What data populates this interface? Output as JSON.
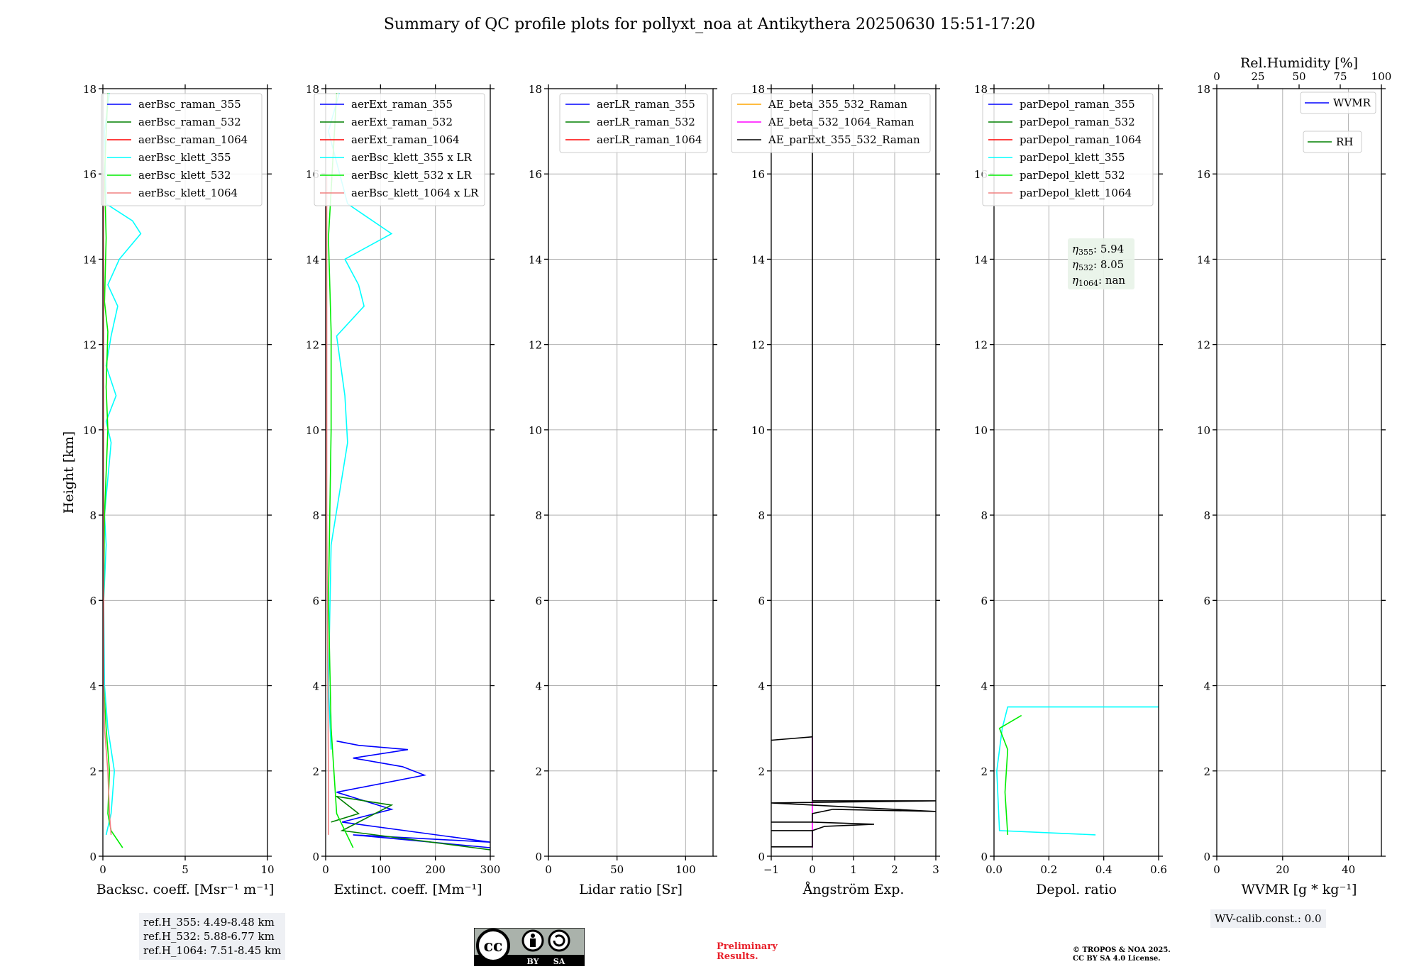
{
  "title": "Summary of QC profile plots for pollyxt_noa at Antikythera 20250630 15:51-17:20",
  "y_axis": {
    "label": "Height [km]",
    "ticks": [
      "0",
      "2",
      "4",
      "6",
      "8",
      "10",
      "12",
      "14",
      "16",
      "18"
    ],
    "ylim": [
      0,
      18
    ]
  },
  "chart_data": [
    {
      "type": "line",
      "xlabel": "Backsc. coeff. [Msr⁻¹ m⁻¹]",
      "xlim": [
        0,
        10
      ],
      "xticks": [
        0,
        5,
        10
      ],
      "legend_position": "top-right",
      "series": [
        {
          "name": "aerBsc_raman_355",
          "color": "#0000ff",
          "points": []
        },
        {
          "name": "aerBsc_raman_532",
          "color": "#008000",
          "points": []
        },
        {
          "name": "aerBsc_raman_1064",
          "color": "#ff0000",
          "points": []
        },
        {
          "name": "aerBsc_klett_355",
          "color": "#00ffff",
          "points": [
            [
              0.2,
              0.5
            ],
            [
              0.5,
              1.0
            ],
            [
              0.7,
              2.0
            ],
            [
              0.3,
              3.0
            ],
            [
              0.1,
              4.0
            ],
            [
              0.05,
              6.0
            ],
            [
              0.2,
              7.3
            ],
            [
              0.1,
              8.0
            ],
            [
              0.5,
              9.7
            ],
            [
              0.2,
              10.2
            ],
            [
              0.8,
              10.8
            ],
            [
              0.2,
              11.5
            ],
            [
              0.5,
              12.2
            ],
            [
              0.9,
              12.9
            ],
            [
              0.3,
              13.4
            ],
            [
              1.0,
              14.0
            ],
            [
              2.3,
              14.6
            ],
            [
              1.8,
              14.9
            ],
            [
              0.2,
              15.3
            ],
            [
              0.1,
              17.0
            ],
            [
              0.4,
              17.9
            ]
          ]
        },
        {
          "name": "aerBsc_klett_532",
          "color": "#00ee00",
          "points": [
            [
              1.2,
              0.2
            ],
            [
              0.5,
              0.6
            ],
            [
              0.3,
              1.0
            ],
            [
              0.4,
              2.0
            ],
            [
              0.2,
              3.0
            ],
            [
              0.05,
              4.0
            ],
            [
              0.05,
              6.0
            ],
            [
              0.1,
              8.0
            ],
            [
              0.3,
              10.0
            ],
            [
              0.2,
              11.0
            ],
            [
              0.3,
              12.3
            ],
            [
              0.1,
              13.0
            ],
            [
              0.2,
              14.5
            ],
            [
              0.1,
              16.0
            ],
            [
              0.3,
              17.9
            ]
          ]
        },
        {
          "name": "aerBsc_klett_1064",
          "color": "#f08080",
          "points": [
            [
              0.5,
              0.5
            ],
            [
              0.4,
              1.0
            ],
            [
              0.3,
              2.0
            ],
            [
              0.1,
              3.0
            ],
            [
              0.05,
              4.0
            ],
            [
              0.05,
              8.0
            ],
            [
              0.05,
              12.0
            ],
            [
              0.05,
              16.0
            ]
          ]
        }
      ]
    },
    {
      "type": "line",
      "xlabel": "Extinct. coeff. [Mm⁻¹]",
      "xlim": [
        0,
        300
      ],
      "xticks": [
        0,
        100,
        200,
        300
      ],
      "legend_position": "top-right",
      "series": [
        {
          "name": "aerExt_raman_355",
          "color": "#0000ff",
          "points": [
            [
              300,
              0.2
            ],
            [
              50,
              0.5
            ],
            [
              300,
              0.33
            ],
            [
              30,
              0.8
            ],
            [
              120,
              1.1
            ],
            [
              20,
              1.5
            ],
            [
              180,
              1.9
            ],
            [
              140,
              2.1
            ],
            [
              50,
              2.3
            ],
            [
              150,
              2.5
            ],
            [
              60,
              2.6
            ],
            [
              20,
              2.7
            ]
          ]
        },
        {
          "name": "aerExt_raman_532",
          "color": "#008000",
          "points": [
            [
              300,
              0.15
            ],
            [
              30,
              0.6
            ],
            [
              120,
              1.2
            ],
            [
              20,
              1.4
            ],
            [
              60,
              1.0
            ],
            [
              10,
              0.8
            ]
          ]
        },
        {
          "name": "aerExt_raman_1064",
          "color": "#ff0000",
          "points": []
        },
        {
          "name": "aerBsc_klett_355 x LR",
          "color": "#00ffff",
          "points": [
            [
              10,
              2.5
            ],
            [
              5,
              4.0
            ],
            [
              10,
              7.3
            ],
            [
              40,
              9.7
            ],
            [
              35,
              10.8
            ],
            [
              20,
              12.2
            ],
            [
              70,
              12.9
            ],
            [
              60,
              13.4
            ],
            [
              35,
              14.0
            ],
            [
              120,
              14.6
            ],
            [
              40,
              15.3
            ],
            [
              5,
              17.0
            ],
            [
              25,
              17.9
            ]
          ]
        },
        {
          "name": "aerBsc_klett_532 x LR",
          "color": "#00ee00",
          "points": [
            [
              50,
              0.2
            ],
            [
              20,
              1.0
            ],
            [
              10,
              3.0
            ],
            [
              5,
              6.0
            ],
            [
              10,
              10.0
            ],
            [
              10,
              12.3
            ],
            [
              5,
              14.5
            ],
            [
              20,
              17.9
            ]
          ]
        },
        {
          "name": "aerBsc_klett_1064 x LR",
          "color": "#f08080",
          "points": [
            [
              5,
              0.5
            ],
            [
              5,
              2.0
            ],
            [
              2,
              8.0
            ],
            [
              2,
              16.0
            ]
          ]
        }
      ]
    },
    {
      "type": "line",
      "xlabel": "Lidar ratio [Sr]",
      "xlim": [
        0,
        120
      ],
      "xticks": [
        0,
        50,
        100
      ],
      "legend_position": "top-right",
      "series": [
        {
          "name": "aerLR_raman_355",
          "color": "#0000ff",
          "points": []
        },
        {
          "name": "aerLR_raman_532",
          "color": "#008000",
          "points": []
        },
        {
          "name": "aerLR_raman_1064",
          "color": "#ff0000",
          "points": []
        }
      ]
    },
    {
      "type": "line",
      "xlabel": "Ångström Exp.",
      "xlim": [
        -1,
        3
      ],
      "xticks": [
        -1,
        0,
        1,
        2,
        3
      ],
      "legend_position": "top-right",
      "series": [
        {
          "name": "AE_beta_355_532_Raman",
          "color": "#ffa500",
          "points": []
        },
        {
          "name": "AE_beta_532_1064_Raman",
          "color": "#ff00ff",
          "points": [
            [
              0,
              0.2
            ],
            [
              0,
              2.8
            ]
          ]
        },
        {
          "name": "AE_parExt_355_532_Raman",
          "color": "#000000",
          "points": [
            [
              -1,
              0.22
            ],
            [
              0,
              0.22
            ],
            [
              0,
              0.6
            ],
            [
              -1,
              0.6
            ],
            [
              0,
              0.6
            ],
            [
              0.3,
              0.7
            ],
            [
              1.5,
              0.75
            ],
            [
              0,
              0.8
            ],
            [
              -1,
              0.8
            ],
            [
              0,
              0.8
            ],
            [
              0,
              1.0
            ],
            [
              0.5,
              1.1
            ],
            [
              3,
              1.05
            ],
            [
              0,
              1.2
            ],
            [
              -1,
              1.25
            ],
            [
              3,
              1.3
            ],
            [
              0,
              1.3
            ],
            [
              0,
              2.8
            ],
            [
              -1,
              2.72
            ],
            [
              0,
              2.8
            ],
            [
              0,
              18
            ]
          ]
        }
      ]
    },
    {
      "type": "line",
      "xlabel": "Depol. ratio",
      "xlim": [
        0,
        0.6
      ],
      "xticks": [
        0.0,
        0.2,
        0.4,
        0.6
      ],
      "legend_position": "top-right",
      "annotation": {
        "eta355": "5.94",
        "eta532": "8.05",
        "eta1064": "nan"
      },
      "series": [
        {
          "name": "parDepol_raman_355",
          "color": "#0000ff",
          "points": []
        },
        {
          "name": "parDepol_raman_532",
          "color": "#008000",
          "points": []
        },
        {
          "name": "parDepol_raman_1064",
          "color": "#ff0000",
          "points": []
        },
        {
          "name": "parDepol_klett_355",
          "color": "#00ffff",
          "points": [
            [
              0.37,
              0.5
            ],
            [
              0.02,
              0.6
            ],
            [
              0.01,
              2.0
            ],
            [
              0.03,
              3.0
            ],
            [
              0.05,
              3.5
            ],
            [
              0.6,
              3.5
            ]
          ]
        },
        {
          "name": "parDepol_klett_532",
          "color": "#00ee00",
          "points": [
            [
              0.05,
              0.5
            ],
            [
              0.04,
              1.5
            ],
            [
              0.05,
              2.5
            ],
            [
              0.02,
              3.0
            ],
            [
              0.1,
              3.3
            ]
          ]
        },
        {
          "name": "parDepol_klett_1064",
          "color": "#f08080",
          "points": []
        }
      ]
    },
    {
      "type": "line",
      "xlabel": "WVMR [g * kg⁻¹]",
      "xlim": [
        0,
        50
      ],
      "xticks": [
        0,
        20,
        40
      ],
      "x2label": "Rel.Humidity [%]",
      "x2lim": [
        0,
        100
      ],
      "x2ticks": [
        0,
        25,
        50,
        75,
        100
      ],
      "legend_position": "top-right",
      "series": [
        {
          "name": "WVMR",
          "color": "#0000ff",
          "points": []
        },
        {
          "name": "RH",
          "color": "#008000",
          "points": []
        }
      ]
    }
  ],
  "ref_heights": [
    "ref.H_355: 4.49-8.48 km",
    "ref.H_532: 5.88-6.77 km",
    "ref.H_1064: 7.51-8.45 km"
  ],
  "wv_calib": "WV-calib.const.: 0.0",
  "preliminary": [
    "Preliminary",
    "Results."
  ],
  "copyright": [
    "© TROPOS & NOA 2025.",
    "CC BY SA 4.0 License."
  ],
  "license_badge": {
    "cc": "cc",
    "by": "BY",
    "sa": "SA"
  }
}
